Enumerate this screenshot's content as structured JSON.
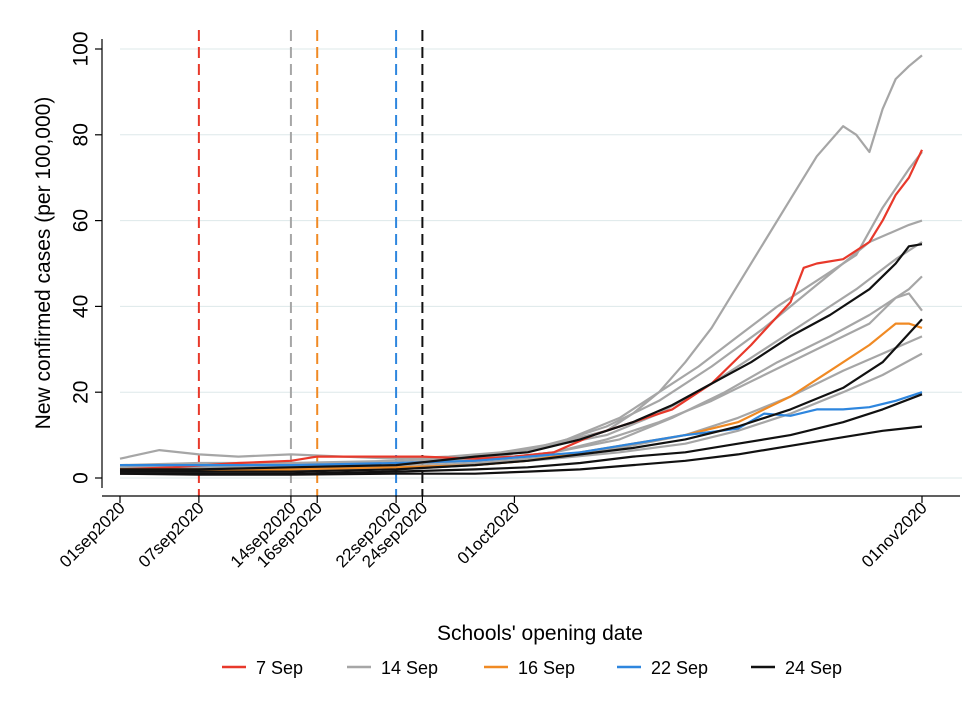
{
  "chart_data": {
    "type": "line",
    "title": "",
    "ylabel": "New confirmed cases (per 100,000)",
    "xlabel": "",
    "x_axis_type": "date",
    "xlim": [
      "2020-09-01",
      "2020-11-01"
    ],
    "ylim": [
      0,
      100
    ],
    "y_ticks": [
      0,
      20,
      40,
      60,
      80,
      100
    ],
    "y_tick_labels": [
      "0",
      "20",
      "40",
      "60",
      "80",
      "100"
    ],
    "x_ticks": [
      {
        "date": "2020-09-01",
        "label": "01sep2020"
      },
      {
        "date": "2020-09-07",
        "label": "07sep2020"
      },
      {
        "date": "2020-09-14",
        "label": "14sep2020"
      },
      {
        "date": "2020-09-16",
        "label": "16sep2020"
      },
      {
        "date": "2020-09-22",
        "label": "22sep2020"
      },
      {
        "date": "2020-09-24",
        "label": "24sep2020"
      },
      {
        "date": "2020-10-01",
        "label": "01oct2020"
      },
      {
        "date": "2020-11-01",
        "label": "01nov2020"
      }
    ],
    "grid": true,
    "legend_title": "Schools' opening date",
    "legend_position": "bottom",
    "groups": [
      {
        "name": "7 Sep",
        "color": "#e8392b"
      },
      {
        "name": "14 Sep",
        "color": "#a6a6a6"
      },
      {
        "name": "16 Sep",
        "color": "#f08a24"
      },
      {
        "name": "22 Sep",
        "color": "#2e86de"
      },
      {
        "name": "24 Sep",
        "color": "#111111"
      }
    ],
    "vertical_lines": [
      {
        "date": "2020-09-07",
        "group": "7 Sep"
      },
      {
        "date": "2020-09-14",
        "group": "14 Sep"
      },
      {
        "date": "2020-09-16",
        "group": "16 Sep"
      },
      {
        "date": "2020-09-22",
        "group": "22 Sep"
      },
      {
        "date": "2020-09-24",
        "group": "24 Sep"
      }
    ],
    "series": [
      {
        "group": "14 Sep",
        "points": [
          [
            "2020-09-01",
            4.5
          ],
          [
            "2020-09-04",
            6.5
          ],
          [
            "2020-09-07",
            5.5
          ],
          [
            "2020-09-10",
            5
          ],
          [
            "2020-09-14",
            5.5
          ],
          [
            "2020-09-18",
            5
          ],
          [
            "2020-09-22",
            4.5
          ],
          [
            "2020-09-26",
            5
          ],
          [
            "2020-09-30",
            6
          ],
          [
            "2020-10-04",
            8
          ],
          [
            "2020-10-08",
            11
          ],
          [
            "2020-10-10",
            15
          ],
          [
            "2020-10-12",
            20
          ],
          [
            "2020-10-14",
            27
          ],
          [
            "2020-10-16",
            35
          ],
          [
            "2020-10-18",
            45
          ],
          [
            "2020-10-20",
            55
          ],
          [
            "2020-10-22",
            65
          ],
          [
            "2020-10-24",
            75
          ],
          [
            "2020-10-26",
            82
          ],
          [
            "2020-10-27",
            80
          ],
          [
            "2020-10-28",
            76
          ],
          [
            "2020-10-29",
            86
          ],
          [
            "2020-10-30",
            93
          ],
          [
            "2020-10-31",
            96
          ],
          [
            "2020-11-01",
            98.5
          ]
        ]
      },
      {
        "group": "14 Sep",
        "points": [
          [
            "2020-09-01",
            1.5
          ],
          [
            "2020-09-07",
            2
          ],
          [
            "2020-09-14",
            2.5
          ],
          [
            "2020-09-20",
            3
          ],
          [
            "2020-09-26",
            4
          ],
          [
            "2020-09-30",
            5
          ],
          [
            "2020-10-05",
            9
          ],
          [
            "2020-10-09",
            14
          ],
          [
            "2020-10-12",
            20
          ],
          [
            "2020-10-15",
            26
          ],
          [
            "2020-10-18",
            33
          ],
          [
            "2020-10-21",
            40
          ],
          [
            "2020-10-24",
            46
          ],
          [
            "2020-10-27",
            52
          ],
          [
            "2020-10-29",
            63
          ],
          [
            "2020-10-31",
            72
          ],
          [
            "2020-11-01",
            76
          ]
        ]
      },
      {
        "group": "14 Sep",
        "points": [
          [
            "2020-09-01",
            2
          ],
          [
            "2020-09-07",
            2.5
          ],
          [
            "2020-09-14",
            3
          ],
          [
            "2020-09-22",
            3.5
          ],
          [
            "2020-09-28",
            4.5
          ],
          [
            "2020-10-03",
            7
          ],
          [
            "2020-10-08",
            12
          ],
          [
            "2020-10-12",
            18
          ],
          [
            "2020-10-16",
            26
          ],
          [
            "2020-10-20",
            35
          ],
          [
            "2020-10-24",
            45
          ],
          [
            "2020-10-28",
            55
          ],
          [
            "2020-10-31",
            59
          ],
          [
            "2020-11-01",
            60
          ]
        ]
      },
      {
        "group": "14 Sep",
        "points": [
          [
            "2020-09-01",
            2.5
          ],
          [
            "2020-09-08",
            3
          ],
          [
            "2020-09-15",
            3
          ],
          [
            "2020-09-22",
            3.5
          ],
          [
            "2020-09-28",
            4
          ],
          [
            "2020-10-04",
            6
          ],
          [
            "2020-10-09",
            9
          ],
          [
            "2020-10-13",
            14
          ],
          [
            "2020-10-17",
            20
          ],
          [
            "2020-10-21",
            27
          ],
          [
            "2020-10-25",
            33
          ],
          [
            "2020-10-28",
            38
          ],
          [
            "2020-10-31",
            44
          ],
          [
            "2020-11-01",
            47
          ]
        ]
      },
      {
        "group": "14 Sep",
        "points": [
          [
            "2020-09-01",
            2
          ],
          [
            "2020-09-08",
            2
          ],
          [
            "2020-09-15",
            2.5
          ],
          [
            "2020-09-22",
            3
          ],
          [
            "2020-09-28",
            4
          ],
          [
            "2020-10-04",
            6
          ],
          [
            "2020-10-08",
            9
          ],
          [
            "2020-10-12",
            13
          ],
          [
            "2020-10-16",
            18
          ],
          [
            "2020-10-20",
            24
          ],
          [
            "2020-10-24",
            30
          ],
          [
            "2020-10-28",
            36
          ],
          [
            "2020-10-30",
            42
          ],
          [
            "2020-10-31",
            43
          ],
          [
            "2020-11-01",
            39
          ]
        ]
      },
      {
        "group": "14 Sep",
        "points": [
          [
            "2020-09-01",
            1.5
          ],
          [
            "2020-09-08",
            2
          ],
          [
            "2020-09-15",
            2
          ],
          [
            "2020-09-22",
            2.5
          ],
          [
            "2020-09-28",
            3.5
          ],
          [
            "2020-10-04",
            5
          ],
          [
            "2020-10-09",
            7
          ],
          [
            "2020-10-14",
            10
          ],
          [
            "2020-10-18",
            14
          ],
          [
            "2020-10-22",
            19
          ],
          [
            "2020-10-26",
            25
          ],
          [
            "2020-10-29",
            29
          ],
          [
            "2020-11-01",
            33
          ]
        ]
      },
      {
        "group": "14 Sep",
        "points": [
          [
            "2020-09-01",
            1
          ],
          [
            "2020-09-08",
            1.5
          ],
          [
            "2020-09-15",
            2
          ],
          [
            "2020-09-22",
            2
          ],
          [
            "2020-09-28",
            3
          ],
          [
            "2020-10-04",
            4.5
          ],
          [
            "2020-10-09",
            6
          ],
          [
            "2020-10-14",
            8
          ],
          [
            "2020-10-18",
            11
          ],
          [
            "2020-10-22",
            15
          ],
          [
            "2020-10-26",
            20
          ],
          [
            "2020-10-29",
            24
          ],
          [
            "2020-11-01",
            29
          ]
        ]
      },
      {
        "group": "14 Sep",
        "points": [
          [
            "2020-09-01",
            3
          ],
          [
            "2020-09-07",
            3.5
          ],
          [
            "2020-09-14",
            3.5
          ],
          [
            "2020-09-22",
            4
          ],
          [
            "2020-09-28",
            5
          ],
          [
            "2020-10-03",
            7
          ],
          [
            "2020-10-08",
            10
          ],
          [
            "2020-10-12",
            15
          ],
          [
            "2020-10-16",
            22
          ],
          [
            "2020-10-20",
            30
          ],
          [
            "2020-10-24",
            38
          ],
          [
            "2020-10-27",
            44
          ],
          [
            "2020-10-30",
            51
          ],
          [
            "2020-11-01",
            55
          ]
        ]
      },
      {
        "group": "7 Sep",
        "points": [
          [
            "2020-09-01",
            2
          ],
          [
            "2020-09-05",
            2.5
          ],
          [
            "2020-09-10",
            3.5
          ],
          [
            "2020-09-14",
            4
          ],
          [
            "2020-09-16",
            5
          ],
          [
            "2020-09-20",
            5
          ],
          [
            "2020-09-24",
            5
          ],
          [
            "2020-09-28",
            4.5
          ],
          [
            "2020-10-01",
            5
          ],
          [
            "2020-10-04",
            6
          ],
          [
            "2020-10-07",
            10
          ],
          [
            "2020-10-10",
            13
          ],
          [
            "2020-10-13",
            16
          ],
          [
            "2020-10-16",
            22
          ],
          [
            "2020-10-19",
            31
          ],
          [
            "2020-10-22",
            41
          ],
          [
            "2020-10-23",
            49
          ],
          [
            "2020-10-24",
            50
          ],
          [
            "2020-10-26",
            51
          ],
          [
            "2020-10-28",
            55
          ],
          [
            "2020-10-29",
            60
          ],
          [
            "2020-10-30",
            66
          ],
          [
            "2020-10-31",
            70
          ],
          [
            "2020-11-01",
            76.5
          ]
        ]
      },
      {
        "group": "16 Sep",
        "points": [
          [
            "2020-09-01",
            2
          ],
          [
            "2020-09-07",
            2
          ],
          [
            "2020-09-14",
            2
          ],
          [
            "2020-09-22",
            2.5
          ],
          [
            "2020-09-28",
            3
          ],
          [
            "2020-10-02",
            4
          ],
          [
            "2020-10-06",
            6
          ],
          [
            "2020-10-10",
            8
          ],
          [
            "2020-10-14",
            10
          ],
          [
            "2020-10-18",
            13
          ],
          [
            "2020-10-22",
            19
          ],
          [
            "2020-10-25",
            25
          ],
          [
            "2020-10-28",
            31
          ],
          [
            "2020-10-30",
            36
          ],
          [
            "2020-10-31",
            36
          ],
          [
            "2020-11-01",
            35
          ]
        ]
      },
      {
        "group": "22 Sep",
        "points": [
          [
            "2020-09-01",
            3
          ],
          [
            "2020-09-07",
            3
          ],
          [
            "2020-09-14",
            3
          ],
          [
            "2020-09-22",
            3.5
          ],
          [
            "2020-09-28",
            4
          ],
          [
            "2020-10-02",
            5
          ],
          [
            "2020-10-06",
            6
          ],
          [
            "2020-10-10",
            8
          ],
          [
            "2020-10-14",
            10
          ],
          [
            "2020-10-18",
            11.5
          ],
          [
            "2020-10-20",
            15
          ],
          [
            "2020-10-22",
            14.5
          ],
          [
            "2020-10-24",
            16
          ],
          [
            "2020-10-26",
            16
          ],
          [
            "2020-10-28",
            16.5
          ],
          [
            "2020-10-30",
            18
          ],
          [
            "2020-11-01",
            20
          ]
        ]
      },
      {
        "group": "24 Sep",
        "points": [
          [
            "2020-09-01",
            2
          ],
          [
            "2020-09-07",
            2
          ],
          [
            "2020-09-14",
            2.5
          ],
          [
            "2020-09-22",
            3
          ],
          [
            "2020-09-28",
            5
          ],
          [
            "2020-10-02",
            6
          ],
          [
            "2020-10-06",
            9
          ],
          [
            "2020-10-10",
            13
          ],
          [
            "2020-10-13",
            17
          ],
          [
            "2020-10-16",
            22
          ],
          [
            "2020-10-19",
            27
          ],
          [
            "2020-10-22",
            33
          ],
          [
            "2020-10-25",
            38
          ],
          [
            "2020-10-28",
            44
          ],
          [
            "2020-10-30",
            50
          ],
          [
            "2020-10-31",
            54
          ],
          [
            "2020-11-01",
            54.5
          ]
        ]
      },
      {
        "group": "24 Sep",
        "points": [
          [
            "2020-09-01",
            1.5
          ],
          [
            "2020-09-07",
            1.5
          ],
          [
            "2020-09-14",
            1.5
          ],
          [
            "2020-09-22",
            2
          ],
          [
            "2020-09-28",
            3
          ],
          [
            "2020-10-02",
            4
          ],
          [
            "2020-10-06",
            5.5
          ],
          [
            "2020-10-10",
            7
          ],
          [
            "2020-10-14",
            9
          ],
          [
            "2020-10-18",
            12
          ],
          [
            "2020-10-22",
            16
          ],
          [
            "2020-10-26",
            21
          ],
          [
            "2020-10-29",
            27
          ],
          [
            "2020-11-01",
            37
          ]
        ]
      },
      {
        "group": "24 Sep",
        "points": [
          [
            "2020-09-01",
            1
          ],
          [
            "2020-09-07",
            1
          ],
          [
            "2020-09-14",
            1
          ],
          [
            "2020-09-22",
            1.5
          ],
          [
            "2020-09-28",
            2
          ],
          [
            "2020-10-02",
            2.5
          ],
          [
            "2020-10-06",
            3.5
          ],
          [
            "2020-10-10",
            5
          ],
          [
            "2020-10-14",
            6
          ],
          [
            "2020-10-18",
            8
          ],
          [
            "2020-10-22",
            10
          ],
          [
            "2020-10-26",
            13
          ],
          [
            "2020-10-29",
            16
          ],
          [
            "2020-11-01",
            19.5
          ]
        ]
      },
      {
        "group": "24 Sep",
        "points": [
          [
            "2020-09-01",
            1
          ],
          [
            "2020-09-07",
            0.8
          ],
          [
            "2020-09-14",
            0.8
          ],
          [
            "2020-09-22",
            1
          ],
          [
            "2020-09-28",
            1
          ],
          [
            "2020-10-02",
            1.5
          ],
          [
            "2020-10-06",
            2
          ],
          [
            "2020-10-10",
            3
          ],
          [
            "2020-10-14",
            4
          ],
          [
            "2020-10-18",
            5.5
          ],
          [
            "2020-10-22",
            7.5
          ],
          [
            "2020-10-26",
            9.5
          ],
          [
            "2020-10-29",
            11
          ],
          [
            "2020-11-01",
            12
          ]
        ]
      }
    ]
  }
}
